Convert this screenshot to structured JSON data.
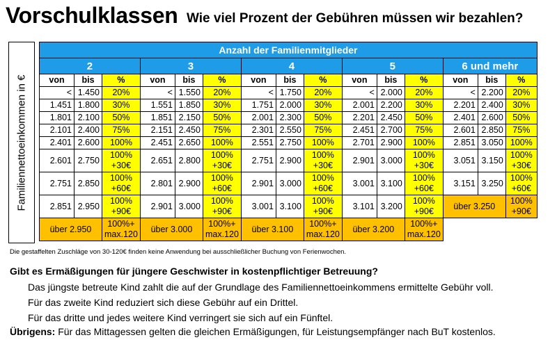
{
  "title": "Vorschulklassen",
  "subtitle": "Wie viel Prozent der Gebühren müssen wir bezahlen?",
  "side_label": "Familiennettoeinkommen in €",
  "table": {
    "main_header": "Anzahl der Familienmitglieder",
    "groups": [
      "2",
      "3",
      "4",
      "5",
      "6 und mehr"
    ],
    "sub_headers": {
      "von": "von",
      "bis": "bis",
      "pct": "%"
    },
    "rows": [
      [
        [
          "<",
          "1.450",
          "20%"
        ],
        [
          "<",
          "1.550",
          "20%"
        ],
        [
          "<",
          "1.750",
          "20%"
        ],
        [
          "<",
          "2.000",
          "20%"
        ],
        [
          "<",
          "2.200",
          "20%"
        ]
      ],
      [
        [
          "1.451",
          "1.800",
          "30%"
        ],
        [
          "1.551",
          "1.850",
          "30%"
        ],
        [
          "1.751",
          "2.000",
          "30%"
        ],
        [
          "2.001",
          "2.200",
          "30%"
        ],
        [
          "2.201",
          "2.400",
          "30%"
        ]
      ],
      [
        [
          "1.801",
          "2.100",
          "50%"
        ],
        [
          "1.851",
          "2.150",
          "50%"
        ],
        [
          "2.001",
          "2.300",
          "50%"
        ],
        [
          "2.201",
          "2.450",
          "50%"
        ],
        [
          "2.401",
          "2.600",
          "50%"
        ]
      ],
      [
        [
          "2.101",
          "2.400",
          "75%"
        ],
        [
          "2.151",
          "2.450",
          "75%"
        ],
        [
          "2.301",
          "2.550",
          "75%"
        ],
        [
          "2.451",
          "2.700",
          "75%"
        ],
        [
          "2.601",
          "2.850",
          "75%"
        ]
      ],
      [
        [
          "2.401",
          "2.600",
          "100%"
        ],
        [
          "2.451",
          "2.650",
          "100%"
        ],
        [
          "2.551",
          "2.750",
          "100%"
        ],
        [
          "2.701",
          "2.900",
          "100%"
        ],
        [
          "2.851",
          "3.050",
          "100%"
        ]
      ]
    ],
    "tall_rows": [
      [
        [
          "2.601",
          "2.750",
          "100%",
          "+30€"
        ],
        [
          "2.651",
          "2.800",
          "100%",
          "+30€"
        ],
        [
          "2.751",
          "2.900",
          "100%",
          "+30€"
        ],
        [
          "2.901",
          "3.000",
          "100%",
          "+30€"
        ],
        [
          "3.051",
          "3.150",
          "100%",
          "+30€"
        ]
      ],
      [
        [
          "2.751",
          "2.850",
          "100%",
          "+60€"
        ],
        [
          "2.801",
          "2.900",
          "100%",
          "+60€"
        ],
        [
          "2.901",
          "3.000",
          "100%",
          "+60€"
        ],
        [
          "3.001",
          "3.100",
          "100%",
          "+60€"
        ],
        [
          "3.151",
          "3.250",
          "100%",
          "+60€"
        ]
      ],
      [
        [
          "2.851",
          "2.950",
          "100%",
          "+90€"
        ],
        [
          "2.901",
          "3.000",
          "100%",
          "+90€"
        ],
        [
          "3.001",
          "3.100",
          "100%",
          "+90€"
        ],
        [
          "3.101",
          "3.200",
          "100%",
          "+90€"
        ]
      ]
    ],
    "last_group_over": {
      "label": "über 3.250",
      "pct": "100%",
      "extra": "+90€"
    },
    "over_row": [
      {
        "label": "über 2.950",
        "pct": "100%+",
        "extra": "max.120"
      },
      {
        "label": "über 3.000",
        "pct": "100%+",
        "extra": "max.120"
      },
      {
        "label": "über 3.100",
        "pct": "100%+",
        "extra": "max.120"
      },
      {
        "label": "über 3.200",
        "pct": "100%+",
        "extra": "max.120"
      }
    ]
  },
  "footnote": "Die gestaffelten Zuschläge von 30-120€ finden keine Anwendung bei ausschließlicher Buchung von Ferienwochen.",
  "question": "Gibt es Ermäßigungen für jüngere Geschwister in kostenpflichtiger Betreuung?",
  "lines": [
    "Das jüngste betreute Kind zahlt die auf der Grundlage des Familiennettoeinkommens ermittelte Gebühr voll.",
    "Für das zweite Kind reduziert sich diese Gebühr auf ein Drittel.",
    "Für das dritte und jedes weitere Kind verringert sie sich auf ein Fünftel."
  ],
  "uebrigens": {
    "label": "Übrigens:",
    "text": " Für das Mittagessen gelten die gleichen Ermäßigungen, für Leistungsempfänger nach BuT kostenlos."
  }
}
